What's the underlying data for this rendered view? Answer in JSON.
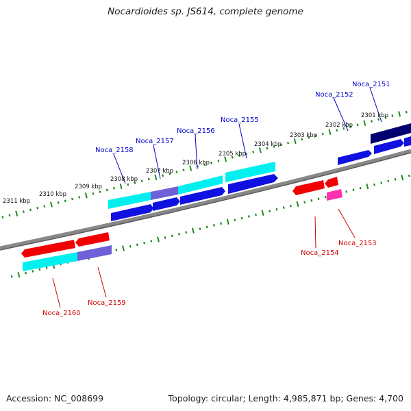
{
  "title": "Nocardioides sp. JS614, complete genome",
  "accession_text": "Accession: NC_008699",
  "summary_text": "Topology: circular; Length: 4,985,871 bp; Genes: 4,700",
  "colors": {
    "backbone": "#888888",
    "tick": "#1a8a1a",
    "forward_label": "#0000cc",
    "reverse_label": "#d40000",
    "cyan": "#00f0f0",
    "blue": "#1010e0",
    "red": "#f00000",
    "purple": "#7060d8",
    "navy": "#000070",
    "magenta": "#ff30b0"
  },
  "kbp_ticks": [
    "2301 kbp",
    "2302 kbp",
    "2303 kbp",
    "2304 kbp",
    "2305 kbp",
    "2306 kbp",
    "2307 kbp",
    "2308 kbp",
    "2309 kbp",
    "2310 kbp",
    "2311 kbp"
  ],
  "forward_genes": [
    "Noca_2151",
    "Noca_2152",
    "Noca_2155",
    "Noca_2156",
    "Noca_2157",
    "Noca_2158"
  ],
  "reverse_genes": [
    "Noca_2153",
    "Noca_2154",
    "Noca_2159",
    "Noca_2160"
  ]
}
